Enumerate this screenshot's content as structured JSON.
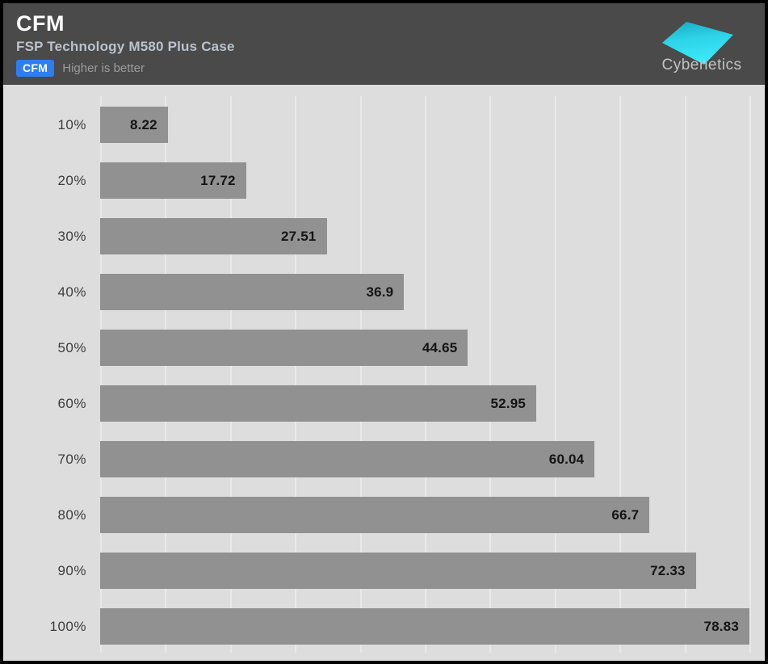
{
  "header": {
    "title": "CFM",
    "subtitle": "FSP Technology M580 Plus Case",
    "legend_badge": "CFM",
    "legend_note": "Higher is better",
    "logo_text": "Cybenetics"
  },
  "colors": {
    "header_bg": "#4a4a4a",
    "chart_bg": "#dddddd",
    "bar": "#919191",
    "badge_blue": "#2e7df2",
    "gridline": "#e9e9e9",
    "logo_cyan_top": "#17a9be",
    "logo_cyan_bottom": "#3ce9fb"
  },
  "chart_data": {
    "type": "bar",
    "orientation": "horizontal",
    "title": "CFM",
    "subtitle": "FSP Technology M580 Plus Case",
    "note": "Higher is better",
    "categories": [
      "10%",
      "20%",
      "30%",
      "40%",
      "50%",
      "60%",
      "70%",
      "80%",
      "90%",
      "100%"
    ],
    "values": [
      8.22,
      17.72,
      27.51,
      36.9,
      44.65,
      52.95,
      60.04,
      66.7,
      72.33,
      78.83
    ],
    "xlim": [
      0,
      78.83
    ],
    "gridline_count": 11,
    "grid": "vertical-only",
    "value_labels": "inside-end",
    "legend_position": "top-left-header"
  }
}
